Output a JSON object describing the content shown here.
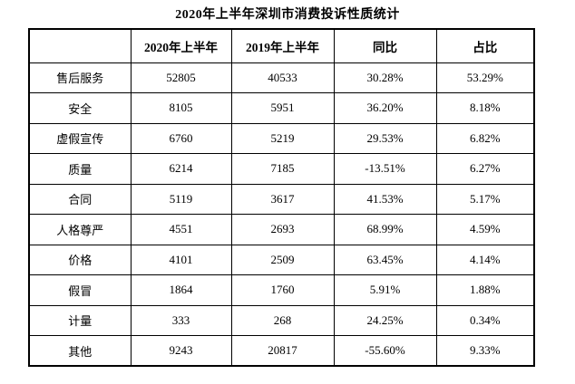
{
  "title": "2020年上半年深圳市消费投诉性质统计",
  "colors": {
    "background": "#ffffff",
    "text": "#000000",
    "border": "#000000"
  },
  "table": {
    "headers": [
      "",
      "2020年上半年",
      "2019年上半年",
      "同比",
      "占比"
    ],
    "rows": [
      [
        "售后服务",
        "52805",
        "40533",
        "30.28%",
        "53.29%"
      ],
      [
        "安全",
        "8105",
        "5951",
        "36.20%",
        "8.18%"
      ],
      [
        "虚假宣传",
        "6760",
        "5219",
        "29.53%",
        "6.82%"
      ],
      [
        "质量",
        "6214",
        "7185",
        "-13.51%",
        "6.27%"
      ],
      [
        "合同",
        "5119",
        "3617",
        "41.53%",
        "5.17%"
      ],
      [
        "人格尊严",
        "4551",
        "2693",
        "68.99%",
        "4.59%"
      ],
      [
        "价格",
        "4101",
        "2509",
        "63.45%",
        "4.14%"
      ],
      [
        "假冒",
        "1864",
        "1760",
        "5.91%",
        "1.88%"
      ],
      [
        "计量",
        "333",
        "268",
        "24.25%",
        "0.34%"
      ],
      [
        "其他",
        "9243",
        "20817",
        "-55.60%",
        "9.33%"
      ]
    ]
  },
  "chart_data": {
    "type": "table",
    "title": "2020年上半年深圳市消费投诉性质统计",
    "columns": [
      "",
      "2020年上半年",
      "2019年上半年",
      "同比",
      "占比"
    ],
    "categories": [
      "售后服务",
      "安全",
      "虚假宣传",
      "质量",
      "合同",
      "人格尊严",
      "价格",
      "假冒",
      "计量",
      "其他"
    ],
    "series": [
      {
        "name": "2020年上半年",
        "values": [
          52805,
          8105,
          6760,
          6214,
          5119,
          4551,
          4101,
          1864,
          333,
          9243
        ]
      },
      {
        "name": "2019年上半年",
        "values": [
          40533,
          5951,
          5219,
          7185,
          3617,
          2693,
          2509,
          1760,
          268,
          20817
        ]
      },
      {
        "name": "同比",
        "values": [
          "30.28%",
          "36.20%",
          "29.53%",
          "-13.51%",
          "41.53%",
          "68.99%",
          "63.45%",
          "5.91%",
          "24.25%",
          "-55.60%"
        ]
      },
      {
        "name": "占比",
        "values": [
          "53.29%",
          "8.18%",
          "6.82%",
          "6.27%",
          "5.17%",
          "4.59%",
          "4.14%",
          "1.88%",
          "0.34%",
          "9.33%"
        ]
      }
    ]
  }
}
